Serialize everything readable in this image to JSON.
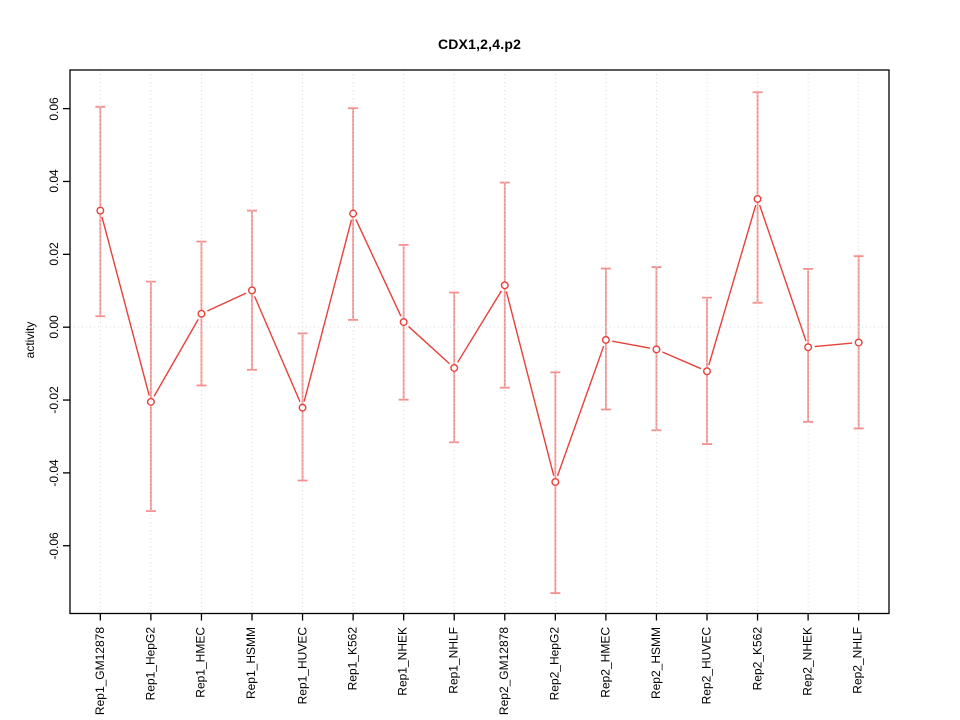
{
  "page": {
    "background": "#ffffff"
  },
  "chart_data": {
    "type": "line",
    "title": "CDX1,2,4.p2",
    "ylabel": "activity",
    "xlabel": "",
    "legend": "none",
    "marker": "open-circle",
    "categories": [
      "Rep1_GM12878",
      "Rep1_HepG2",
      "Rep1_HMEC",
      "Rep1_HSMM",
      "Rep1_HUVEC",
      "Rep1_K562",
      "Rep1_NHEK",
      "Rep1_NHLF",
      "Rep2_GM12878",
      "Rep2_HepG2",
      "Rep2_HMEC",
      "Rep2_HSMM",
      "Rep2_HUVEC",
      "Rep2_K562",
      "Rep2_NHEK",
      "Rep2_NHLF"
    ],
    "series": [
      {
        "name": "activity",
        "values": [
          0.032,
          -0.0205,
          0.0037,
          0.0101,
          -0.0221,
          0.0312,
          0.0014,
          -0.0112,
          0.0115,
          -0.0425,
          -0.0035,
          -0.0061,
          -0.0121,
          0.0352,
          -0.0055,
          -0.0042
        ]
      }
    ],
    "error_high": [
      0.0605,
      0.0125,
      0.0235,
      0.032,
      -0.0017,
      0.0601,
      0.0226,
      0.0095,
      0.0397,
      -0.0124,
      0.0161,
      0.0165,
      0.0081,
      0.0645,
      0.016,
      0.0195
    ],
    "error_low": [
      0.003,
      -0.0505,
      -0.016,
      -0.0117,
      -0.0421,
      0.002,
      -0.0199,
      -0.0316,
      -0.0166,
      -0.073,
      -0.0226,
      -0.0283,
      -0.0321,
      0.0067,
      -0.026,
      -0.0278
    ],
    "ylim": [
      -0.0786,
      0.0706
    ],
    "xlim": [
      0.4,
      16.6
    ],
    "yticks": [
      -0.06,
      -0.04,
      -0.02,
      0,
      0.02,
      0.04,
      0.06
    ],
    "ytick_labels": [
      "-0.06",
      "-0.04",
      "-0.02",
      "0.00",
      "0.02",
      "0.04",
      "0.06"
    ],
    "grid": {
      "vertical_dotted_at_each_category": true,
      "horizontal_dotted_at_zero": true
    },
    "colors": {
      "series": "#e8403a",
      "error_bar": "#f4918e",
      "grid": "#d9d9d9",
      "axis": "#000000",
      "point_fill": "#ffffff"
    }
  }
}
